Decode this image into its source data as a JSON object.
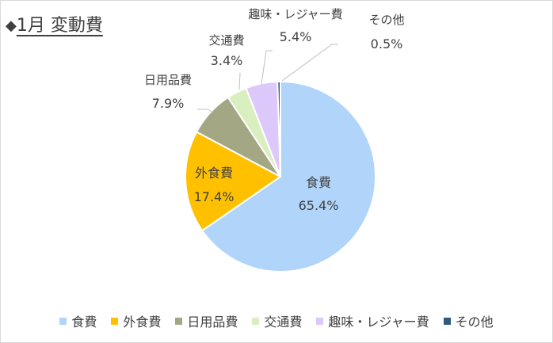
{
  "chart_data": {
    "type": "pie",
    "title": "1月 変動費",
    "title_marker": "◆",
    "series": [
      {
        "name": "食費",
        "value": 65.4,
        "label": "65.4%",
        "color": "#b0d4fa"
      },
      {
        "name": "外食費",
        "value": 17.4,
        "label": "17.4%",
        "color": "#ffc000"
      },
      {
        "name": "日用品費",
        "value": 7.9,
        "label": "7.9%",
        "color": "#a4a783"
      },
      {
        "name": "交通費",
        "value": 3.4,
        "label": "3.4%",
        "color": "#d9efc0"
      },
      {
        "name": "趣味・レジャー費",
        "value": 5.4,
        "label": "5.4%",
        "color": "#dcc8fb"
      },
      {
        "name": "その他",
        "value": 0.5,
        "label": "0.5%",
        "color": "#2e5a80"
      }
    ],
    "legend_position": "bottom",
    "start_angle": "12 o'clock",
    "direction": "clockwise"
  }
}
